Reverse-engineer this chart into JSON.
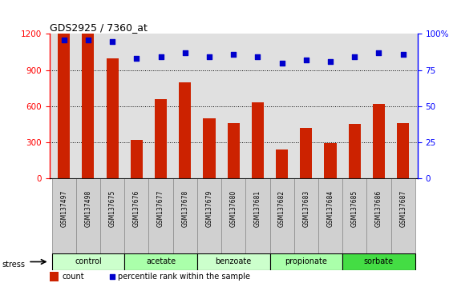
{
  "title": "GDS2925 / 7360_at",
  "samples": [
    "GSM137497",
    "GSM137498",
    "GSM137675",
    "GSM137676",
    "GSM137677",
    "GSM137678",
    "GSM137679",
    "GSM137680",
    "GSM137681",
    "GSM137682",
    "GSM137683",
    "GSM137684",
    "GSM137685",
    "GSM137686",
    "GSM137687"
  ],
  "counts": [
    1200,
    1200,
    1000,
    320,
    660,
    800,
    500,
    460,
    630,
    240,
    420,
    290,
    450,
    620,
    460
  ],
  "percentiles": [
    96,
    96,
    95,
    83,
    84,
    87,
    84,
    86,
    84,
    80,
    82,
    81,
    84,
    87,
    86
  ],
  "groups": [
    {
      "label": "control",
      "start": 0,
      "end": 3,
      "color": "#ccffcc"
    },
    {
      "label": "acetate",
      "start": 3,
      "end": 6,
      "color": "#aaffaa"
    },
    {
      "label": "benzoate",
      "start": 6,
      "end": 9,
      "color": "#ccffcc"
    },
    {
      "label": "propionate",
      "start": 9,
      "end": 12,
      "color": "#aaffaa"
    },
    {
      "label": "sorbate",
      "start": 12,
      "end": 15,
      "color": "#44dd44"
    }
  ],
  "stress_label": "stress",
  "bar_color": "#cc2200",
  "dot_color": "#0000cc",
  "left_ylim": [
    0,
    1200
  ],
  "right_ylim": [
    0,
    100
  ],
  "left_yticks": [
    0,
    300,
    600,
    900,
    1200
  ],
  "right_yticks": [
    0,
    25,
    50,
    75,
    100
  ],
  "right_yticklabels": [
    "0",
    "25",
    "50",
    "75",
    "100%"
  ],
  "bar_width": 0.5,
  "plot_bg_color": "#e0e0e0",
  "xtick_bg_color": "#d0d0d0",
  "legend_count_color": "#cc2200",
  "legend_dot_color": "#0000cc"
}
